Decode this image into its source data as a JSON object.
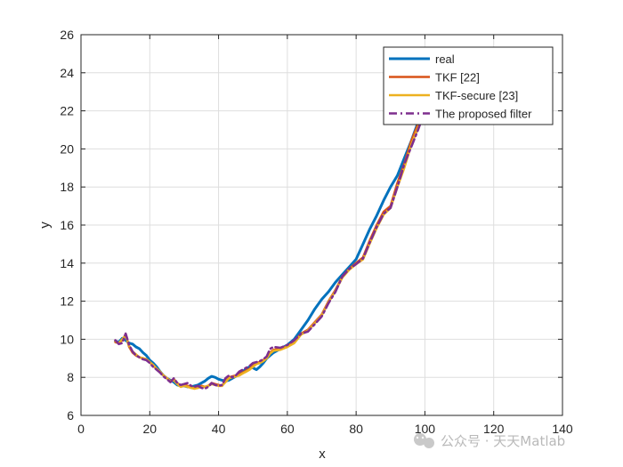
{
  "chart_data": {
    "type": "line",
    "title": "",
    "xlabel": "x",
    "ylabel": "y",
    "xlim": [
      0,
      140
    ],
    "ylim": [
      6,
      26
    ],
    "xticks": [
      0,
      20,
      40,
      60,
      80,
      100,
      120,
      140
    ],
    "yticks": [
      6,
      8,
      10,
      12,
      14,
      16,
      18,
      20,
      22,
      24,
      26
    ],
    "grid": true,
    "legend_position": "top-right",
    "series": [
      {
        "name": "real",
        "color": "#0072BD",
        "style": "solid",
        "x": [
          10,
          11,
          12,
          13,
          14,
          15,
          16,
          17,
          18,
          19,
          20,
          21,
          22,
          23,
          24,
          25,
          26,
          27,
          28,
          29,
          30,
          31,
          32,
          33,
          34,
          35,
          36,
          37,
          38,
          39,
          40,
          41,
          42,
          43,
          44,
          45,
          46,
          47,
          48,
          49,
          50,
          51,
          52,
          53,
          54,
          55,
          56,
          58,
          60,
          62,
          64,
          66,
          68,
          70,
          72,
          74,
          76,
          78,
          80,
          82,
          84,
          86,
          88,
          90,
          92,
          94,
          96,
          98,
          100
        ],
        "y": [
          9.9,
          9.85,
          10.05,
          9.95,
          9.8,
          9.75,
          9.6,
          9.5,
          9.3,
          9.15,
          8.9,
          8.75,
          8.55,
          8.3,
          8.1,
          7.95,
          7.85,
          7.75,
          7.6,
          7.55,
          7.55,
          7.5,
          7.5,
          7.55,
          7.6,
          7.7,
          7.8,
          7.95,
          8.05,
          8.0,
          7.9,
          7.85,
          7.8,
          7.85,
          7.95,
          8.05,
          8.2,
          8.3,
          8.45,
          8.55,
          8.5,
          8.4,
          8.55,
          8.75,
          9.0,
          9.15,
          9.3,
          9.5,
          9.7,
          10.0,
          10.5,
          11.0,
          11.6,
          12.1,
          12.5,
          13.0,
          13.4,
          13.8,
          14.2,
          15.0,
          15.8,
          16.5,
          17.3,
          18.0,
          18.6,
          19.5,
          20.4,
          21.4,
          22.4
        ]
      },
      {
        "name": "TKF [22]",
        "color": "#D95319",
        "style": "solid",
        "x": [
          10,
          11,
          12,
          13,
          14,
          15,
          16,
          17,
          18,
          19,
          20,
          21,
          22,
          23,
          24,
          25,
          26,
          27,
          28,
          29,
          30,
          31,
          32,
          33,
          34,
          35,
          36,
          37,
          38,
          39,
          40,
          41,
          42,
          43,
          44,
          45,
          46,
          47,
          48,
          49,
          50,
          51,
          52,
          53,
          54,
          55,
          56,
          58,
          60,
          62,
          64,
          66,
          68,
          70,
          72,
          74,
          76,
          78,
          80,
          82,
          84,
          86,
          88,
          90,
          92,
          94,
          96,
          98,
          100
        ],
        "y": [
          9.85,
          9.8,
          9.95,
          10.25,
          9.6,
          9.3,
          9.15,
          9.05,
          9.0,
          8.95,
          8.8,
          8.6,
          8.45,
          8.25,
          8.1,
          7.95,
          7.8,
          7.9,
          7.7,
          7.55,
          7.6,
          7.55,
          7.45,
          7.45,
          7.45,
          7.55,
          7.5,
          7.55,
          7.7,
          7.65,
          7.6,
          7.55,
          7.8,
          8.0,
          8.05,
          8.1,
          8.15,
          8.25,
          8.35,
          8.45,
          8.6,
          8.75,
          8.8,
          8.9,
          9.05,
          9.3,
          9.45,
          9.5,
          9.65,
          9.85,
          10.3,
          10.5,
          10.9,
          11.3,
          12.0,
          12.6,
          13.3,
          13.7,
          14.0,
          14.3,
          15.2,
          16.0,
          16.7,
          17.0,
          18.2,
          19.2,
          20.4,
          21.3,
          22.3
        ]
      },
      {
        "name": "TKF-secure [23]",
        "color": "#EDB120",
        "style": "solid",
        "x": [
          10,
          11,
          12,
          13,
          14,
          15,
          16,
          17,
          18,
          19,
          20,
          21,
          22,
          23,
          24,
          25,
          26,
          27,
          28,
          29,
          30,
          31,
          32,
          33,
          34,
          35,
          36,
          37,
          38,
          39,
          40,
          41,
          42,
          43,
          44,
          45,
          46,
          47,
          48,
          49,
          50,
          51,
          52,
          53,
          54,
          55,
          56,
          58,
          60,
          62,
          64,
          66,
          68,
          70,
          72,
          74,
          76,
          78,
          80,
          82,
          84,
          86,
          88,
          90,
          92,
          94,
          96,
          98,
          100
        ],
        "y": [
          9.9,
          9.8,
          10.0,
          10.2,
          9.65,
          9.35,
          9.2,
          9.05,
          9.0,
          8.95,
          8.8,
          8.65,
          8.45,
          8.3,
          8.1,
          7.95,
          7.8,
          7.85,
          7.65,
          7.5,
          7.55,
          7.5,
          7.45,
          7.4,
          7.45,
          7.5,
          7.5,
          7.55,
          7.65,
          7.6,
          7.55,
          7.55,
          7.75,
          7.95,
          8.0,
          8.05,
          8.1,
          8.2,
          8.3,
          8.4,
          8.55,
          8.7,
          8.75,
          8.85,
          9.0,
          9.25,
          9.4,
          9.45,
          9.6,
          9.8,
          10.25,
          10.45,
          10.85,
          11.25,
          11.95,
          12.55,
          13.25,
          13.65,
          13.95,
          14.2,
          15.05,
          15.85,
          16.55,
          16.9,
          18.0,
          19.0,
          20.2,
          21.1,
          22.1
        ]
      },
      {
        "name": "The proposed filter",
        "color": "#7E2F8E",
        "style": "dashdot",
        "x": [
          10,
          11,
          12,
          13,
          14,
          15,
          16,
          17,
          18,
          19,
          20,
          21,
          22,
          23,
          24,
          25,
          26,
          27,
          28,
          29,
          30,
          31,
          32,
          33,
          34,
          35,
          36,
          37,
          38,
          39,
          40,
          41,
          42,
          43,
          44,
          45,
          46,
          47,
          48,
          49,
          50,
          51,
          52,
          53,
          54,
          55,
          56,
          58,
          60,
          62,
          64,
          66,
          68,
          70,
          72,
          74,
          76,
          78,
          80,
          82,
          84,
          86,
          88,
          90,
          92,
          94,
          96,
          98,
          100
        ],
        "y": [
          9.95,
          9.75,
          9.8,
          10.3,
          9.7,
          9.35,
          9.15,
          9.05,
          8.95,
          8.9,
          8.75,
          8.55,
          8.4,
          8.25,
          8.05,
          7.9,
          7.75,
          7.95,
          7.7,
          7.6,
          7.65,
          7.7,
          7.55,
          7.5,
          7.55,
          7.45,
          7.4,
          7.5,
          7.7,
          7.6,
          7.55,
          7.6,
          7.95,
          8.1,
          8.0,
          8.1,
          8.3,
          8.4,
          8.5,
          8.6,
          8.75,
          8.8,
          8.85,
          8.95,
          9.1,
          9.5,
          9.6,
          9.55,
          9.7,
          9.95,
          10.3,
          10.4,
          10.8,
          11.2,
          11.9,
          12.5,
          13.3,
          13.7,
          13.95,
          14.25,
          15.1,
          15.9,
          16.6,
          16.9,
          18.0,
          19.2,
          20.1,
          21.0,
          22.0
        ]
      }
    ]
  },
  "watermark": {
    "text": "公众号 · 天天Matlab"
  }
}
